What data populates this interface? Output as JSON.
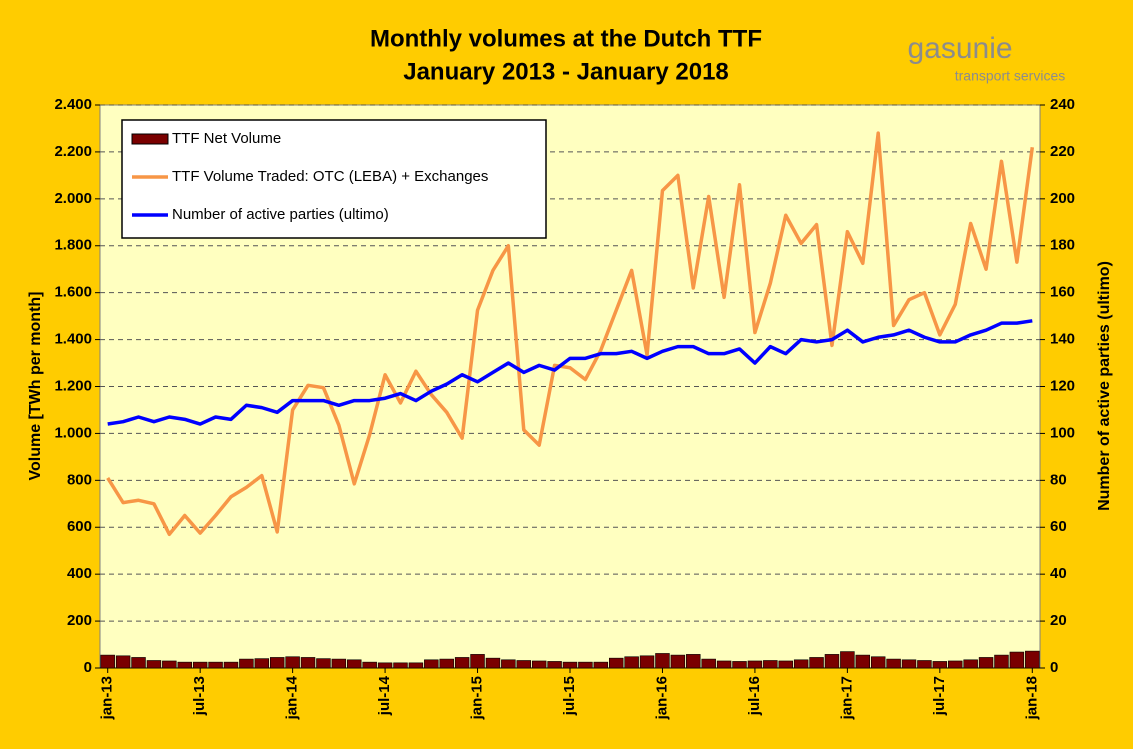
{
  "chart_data": {
    "type": "combo",
    "title": "Monthly volumes at the Dutch TTF",
    "subtitle": "January 2013 - January 2018",
    "logo": {
      "name": "gasunie",
      "tagline": "transport services"
    },
    "y_label": "Volume  [TWh per month]",
    "y2_label": "Number of active parties (ultimo)",
    "categories": [
      "jan-13",
      null,
      null,
      null,
      null,
      null,
      "jul-13",
      null,
      null,
      null,
      null,
      null,
      "jan-14",
      null,
      null,
      null,
      null,
      null,
      "jul-14",
      null,
      null,
      null,
      null,
      null,
      "jan-15",
      null,
      null,
      null,
      null,
      null,
      "jul-15",
      null,
      null,
      null,
      null,
      null,
      "jan-16",
      null,
      null,
      null,
      null,
      null,
      "jul-16",
      null,
      null,
      null,
      null,
      null,
      "jan-17",
      null,
      null,
      null,
      null,
      null,
      "jul-17",
      null,
      null,
      null,
      null,
      null,
      "jan-18"
    ],
    "series": [
      {
        "name": "TTF Net Volume",
        "type": "bar",
        "color": "#7a0000",
        "values": [
          55,
          52,
          45,
          32,
          30,
          25,
          25,
          25,
          25,
          38,
          40,
          45,
          48,
          45,
          40,
          38,
          35,
          25,
          22,
          22,
          22,
          35,
          38,
          45,
          58,
          42,
          35,
          32,
          30,
          28,
          25,
          25,
          25,
          42,
          48,
          52,
          62,
          55,
          58,
          38,
          30,
          28,
          30,
          32,
          30,
          35,
          45,
          58,
          70,
          55,
          48,
          38,
          35,
          32,
          28,
          30,
          35,
          45,
          55,
          68,
          72
        ]
      },
      {
        "name": "TTF Volume Traded: OTC (LEBA) + Exchanges",
        "type": "line",
        "color": "#f79646",
        "values": [
          810,
          705,
          715,
          700,
          570,
          650,
          575,
          650,
          730,
          770,
          820,
          580,
          1100,
          1205,
          1195,
          1035,
          785,
          995,
          1250,
          1130,
          1265,
          1165,
          1090,
          980,
          1525,
          1695,
          1800,
          1015,
          950,
          1290,
          1280,
          1230,
          1355,
          1525,
          1695,
          1335,
          2035,
          2100,
          1620,
          2010,
          1580,
          2060,
          1430,
          1640,
          1930,
          1810,
          1890,
          1375,
          1860,
          1725,
          2280,
          1460,
          1570,
          1600,
          1420,
          1550,
          1895,
          1700,
          2160,
          1730,
          2220
        ]
      },
      {
        "name": "Number of active parties (ultimo)",
        "type": "line",
        "color": "#0000ff",
        "axis": "y2",
        "values": [
          104,
          105,
          107,
          105,
          107,
          106,
          104,
          107,
          106,
          112,
          111,
          109,
          114,
          114,
          114,
          112,
          114,
          114,
          115,
          117,
          114,
          118,
          121,
          125,
          122,
          126,
          130,
          126,
          129,
          127,
          132,
          132,
          134,
          134,
          135,
          132,
          135,
          137,
          137,
          134,
          134,
          136,
          130,
          137,
          134,
          140,
          139,
          140,
          144,
          139,
          141,
          142,
          144,
          141,
          139,
          139,
          142,
          144,
          147,
          147,
          148
        ]
      }
    ],
    "ylim": [
      0,
      2400
    ],
    "yticks": [
      0,
      200,
      400,
      600,
      800,
      {
        "value": 1000,
        "label": "1.000"
      },
      {
        "value": 1200,
        "label": "1.200"
      },
      {
        "value": 1400,
        "label": "1.400"
      },
      {
        "value": 1600,
        "label": "1.600"
      },
      {
        "value": 1800,
        "label": "1.800"
      },
      {
        "value": 2000,
        "label": "2.000"
      },
      {
        "value": 2200,
        "label": "2.200"
      },
      {
        "value": 2400,
        "label": "2.400"
      }
    ],
    "y2lim": [
      0,
      240
    ],
    "y2ticks": [
      0,
      20,
      40,
      60,
      80,
      100,
      120,
      140,
      160,
      180,
      200,
      220,
      240
    ],
    "grid": true,
    "legend": "upper left"
  }
}
